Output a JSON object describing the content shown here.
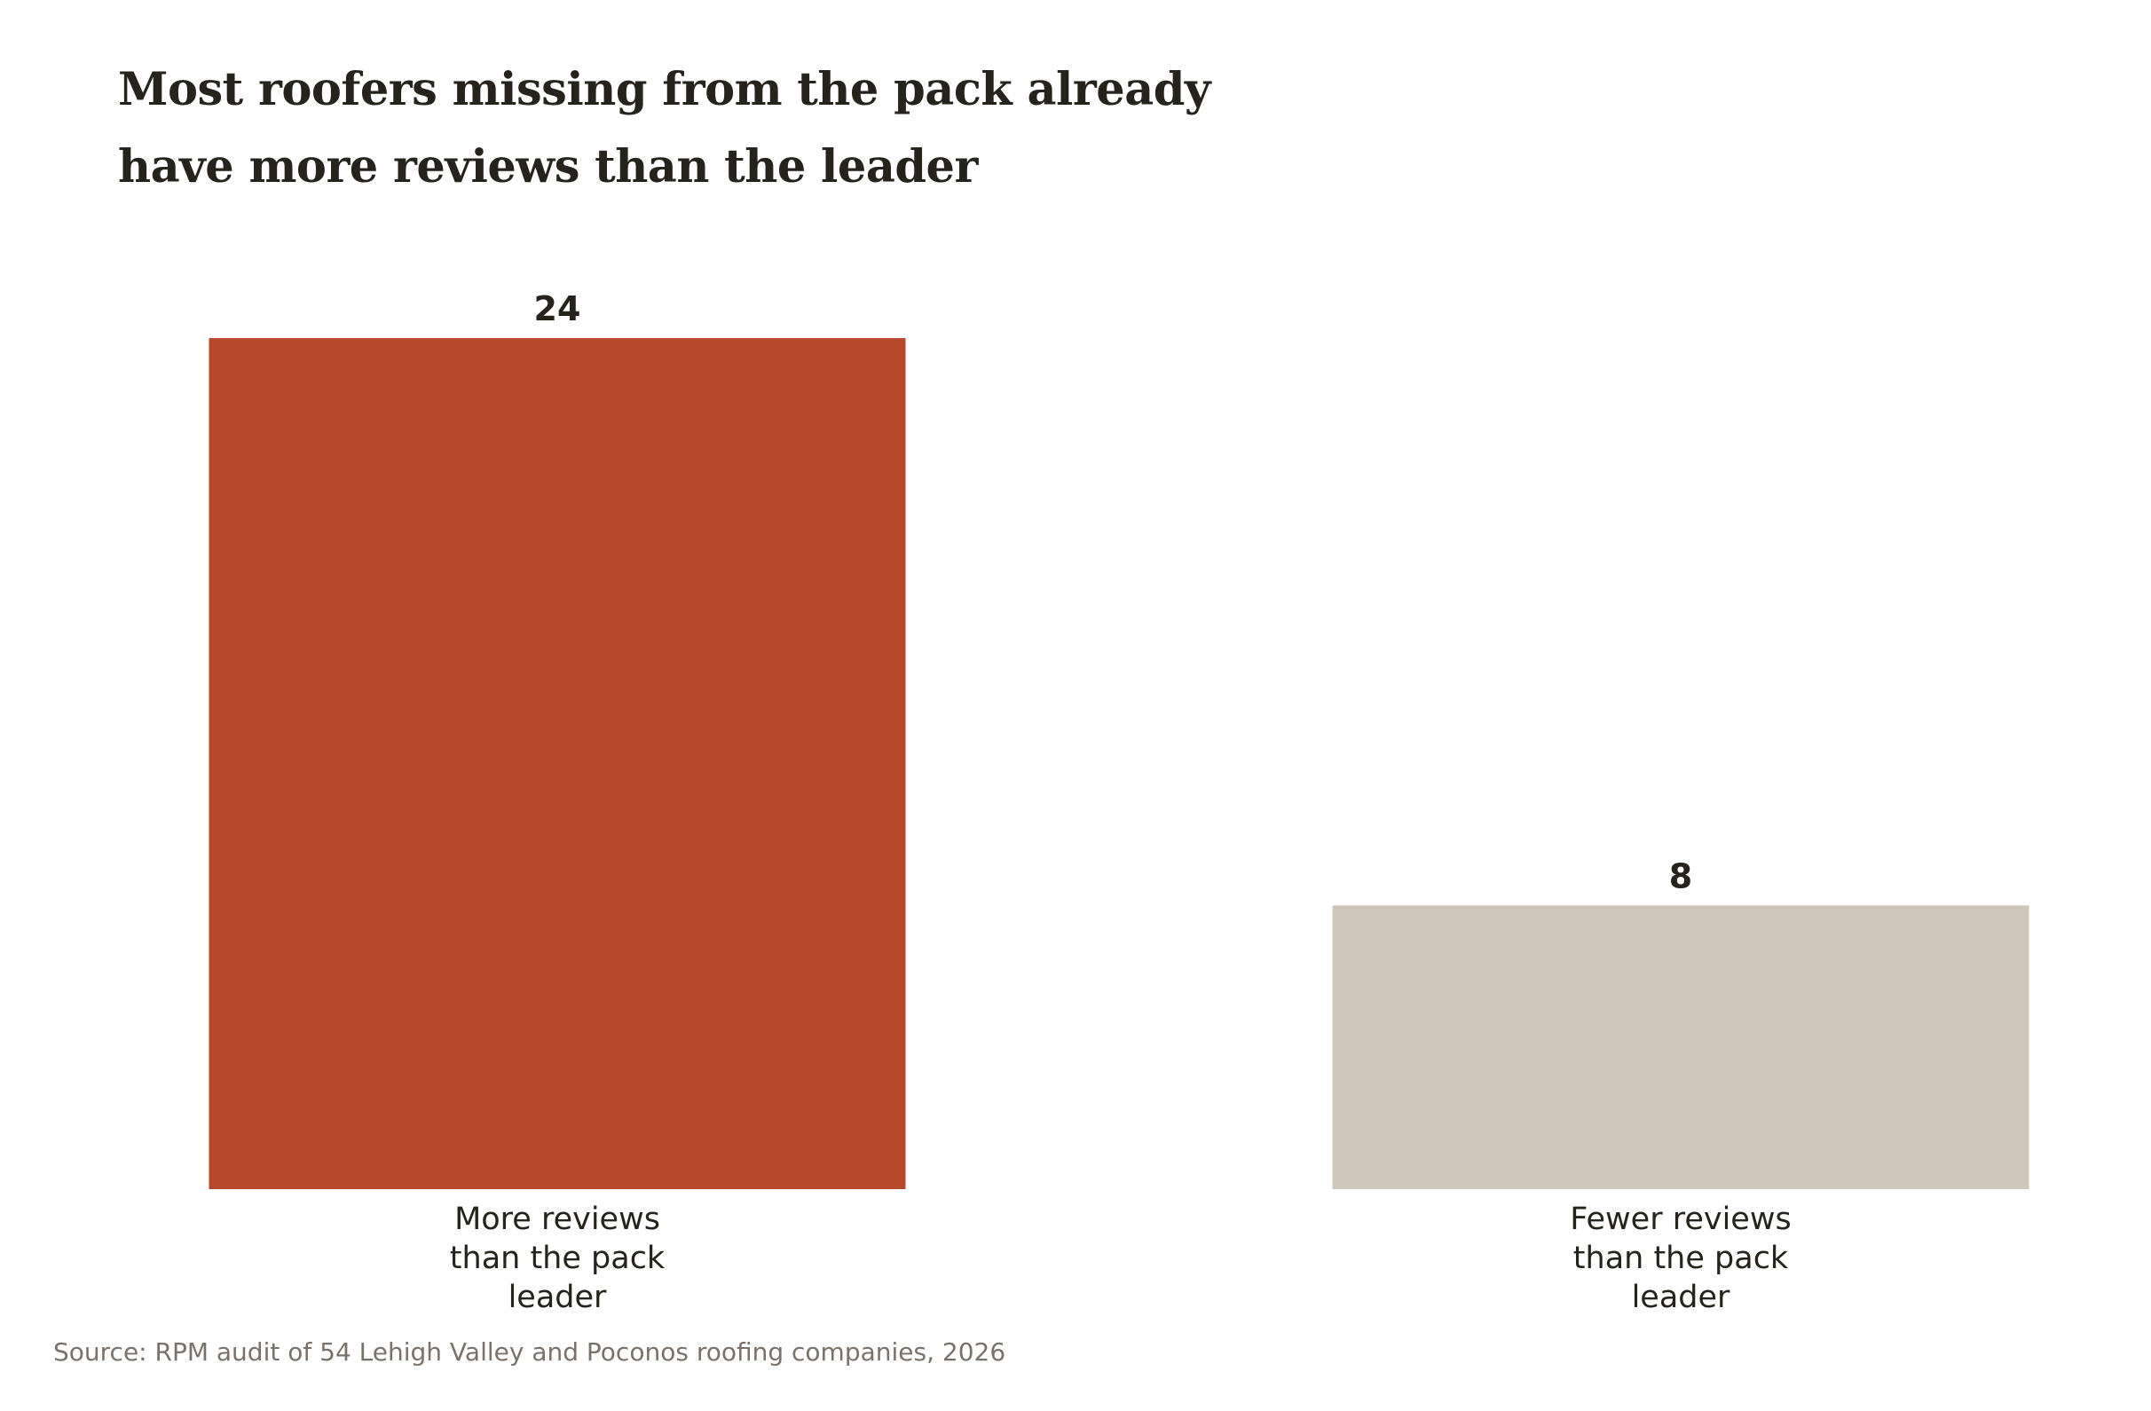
{
  "chart_data": {
    "type": "bar",
    "title_lines": [
      "Most roofers missing from the pack already",
      "have more reviews than the leader"
    ],
    "categories": [
      [
        "More reviews",
        "than the pack",
        "leader"
      ],
      [
        "Fewer reviews",
        "than the pack",
        "leader"
      ]
    ],
    "values": [
      24,
      8
    ],
    "value_labels": [
      "24",
      "8"
    ],
    "colors": [
      "#b8482b",
      "#cfc5b9"
    ],
    "ylim": [
      0,
      24
    ],
    "grid": false,
    "xlabel": "",
    "ylabel": "",
    "source": "Source: RPM audit of 54 Lehigh Valley and Poconos roofing companies, 2026"
  }
}
